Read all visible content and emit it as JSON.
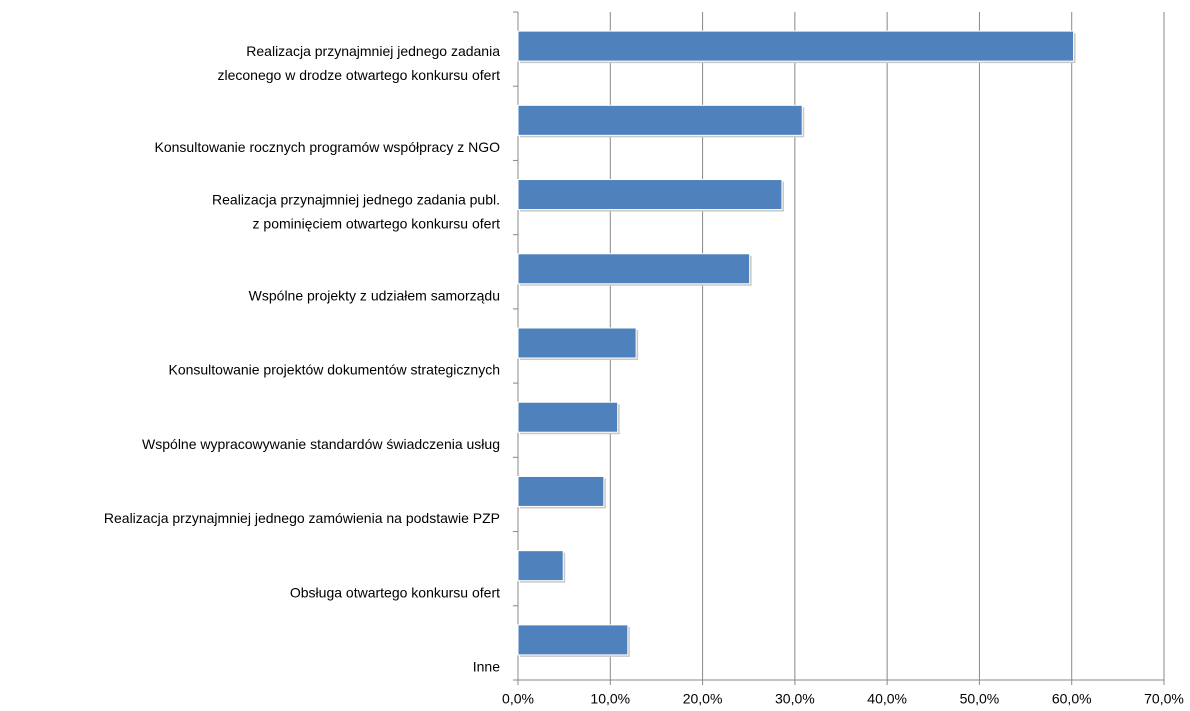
{
  "chart_data": {
    "type": "bar",
    "orientation": "horizontal",
    "categories": [
      "Realizacja przynajmniej jednego zadania\nzleconego w drodze otwartego konkursu ofert",
      "Konsultowanie rocznych programów współpracy z NGO",
      "Realizacja przynajmniej jednego zadania publ.\nz pominięciem otwartego konkursu ofert",
      "Wspólne projekty z udziałem samorządu",
      "Konsultowanie projektów dokumentów strategicznych",
      "Wspólne wypracowywanie standardów świadczenia usług",
      "Realizacja przynajmniej jednego zamówienia na podstawie PZP",
      "Obsługa otwartego konkursu ofert",
      "Inne"
    ],
    "values": [
      60.2,
      30.8,
      28.6,
      25.1,
      12.8,
      10.8,
      9.3,
      4.9,
      11.9
    ],
    "color": "#4f81bd",
    "xlim": [
      0,
      70
    ],
    "xticks": [
      {
        "value": 0,
        "label": "0,0%"
      },
      {
        "value": 10,
        "label": "10,0%"
      },
      {
        "value": 20,
        "label": "20,0%"
      },
      {
        "value": 30,
        "label": "30,0%"
      },
      {
        "value": 40,
        "label": "40,0%"
      },
      {
        "value": 50,
        "label": "50,0%"
      },
      {
        "value": 60,
        "label": "60,0%"
      },
      {
        "value": 70,
        "label": "70,0%"
      }
    ],
    "grid": true
  }
}
